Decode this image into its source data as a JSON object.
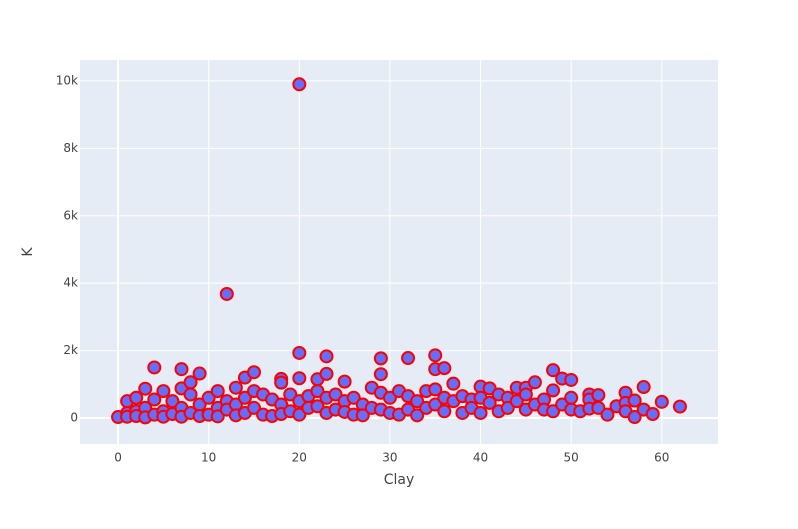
{
  "chart_data": {
    "type": "scatter",
    "x_label": "Clay",
    "y_label": "K",
    "marker_color": "#636efa",
    "marker_line_color": "#ff0000",
    "grid": true,
    "xlim": [
      -4.2,
      66.2
    ],
    "xticks": [
      0,
      10,
      20,
      30,
      40,
      50,
      60
    ],
    "ylim": [
      -770,
      10620
    ],
    "yticks": [
      0,
      {
        "value": 2000,
        "label": "2k"
      },
      {
        "value": 4000,
        "label": "4k"
      },
      {
        "value": 6000,
        "label": "6k"
      },
      {
        "value": 8000,
        "label": "8k"
      },
      {
        "value": 10000,
        "label": "10k"
      }
    ],
    "x": [
      0,
      1,
      1,
      1,
      2,
      2,
      2,
      3,
      3,
      3,
      4,
      4,
      4,
      5,
      5,
      5,
      6,
      6,
      7,
      7,
      7,
      7,
      8,
      8,
      8,
      9,
      9,
      9,
      10,
      10,
      11,
      11,
      11,
      12,
      12,
      12,
      13,
      13,
      13,
      14,
      14,
      14,
      15,
      15,
      15,
      16,
      16,
      17,
      17,
      18,
      18,
      18,
      18,
      19,
      19,
      20,
      20,
      20,
      20,
      20,
      21,
      21,
      22,
      22,
      22,
      23,
      23,
      23,
      23,
      24,
      24,
      25,
      25,
      25,
      26,
      26,
      27,
      27,
      28,
      28,
      29,
      29,
      29,
      29,
      30,
      30,
      31,
      31,
      32,
      32,
      32,
      33,
      33,
      34,
      34,
      35,
      35,
      35,
      35,
      36,
      36,
      36,
      37,
      37,
      38,
      38,
      39,
      39,
      40,
      40,
      40,
      41,
      41,
      42,
      42,
      43,
      43,
      44,
      44,
      45,
      45,
      45,
      46,
      46,
      47,
      47,
      48,
      48,
      48,
      49,
      49,
      50,
      50,
      50,
      51,
      52,
      52,
      52,
      53,
      53,
      54,
      55,
      56,
      56,
      56,
      57,
      57,
      58,
      58,
      59,
      60,
      62
    ],
    "y": [
      30,
      500,
      150,
      40,
      600,
      200,
      60,
      870,
      300,
      20,
      1500,
      550,
      100,
      800,
      200,
      40,
      500,
      120,
      1450,
      880,
      300,
      40,
      1060,
      700,
      150,
      1320,
      400,
      60,
      600,
      100,
      800,
      300,
      50,
      3680,
      500,
      250,
      900,
      400,
      80,
      1200,
      600,
      150,
      1360,
      800,
      300,
      700,
      100,
      550,
      60,
      1160,
      1050,
      400,
      120,
      700,
      200,
      9900,
      1930,
      1180,
      500,
      100,
      650,
      300,
      1150,
      800,
      350,
      1830,
      1310,
      600,
      150,
      700,
      250,
      1080,
      500,
      180,
      600,
      100,
      400,
      80,
      900,
      300,
      1770,
      1300,
      750,
      250,
      600,
      150,
      800,
      100,
      1780,
      650,
      250,
      500,
      80,
      800,
      300,
      1860,
      1450,
      850,
      400,
      1480,
      600,
      200,
      1020,
      500,
      650,
      150,
      550,
      300,
      930,
      600,
      150,
      880,
      450,
      700,
      200,
      600,
      300,
      900,
      500,
      900,
      700,
      250,
      1060,
      400,
      550,
      250,
      1420,
      820,
      200,
      1170,
      400,
      1130,
      600,
      250,
      200,
      700,
      550,
      280,
      680,
      300,
      100,
      350,
      750,
      450,
      200,
      520,
      30,
      920,
      250,
      120,
      480,
      340
    ]
  }
}
